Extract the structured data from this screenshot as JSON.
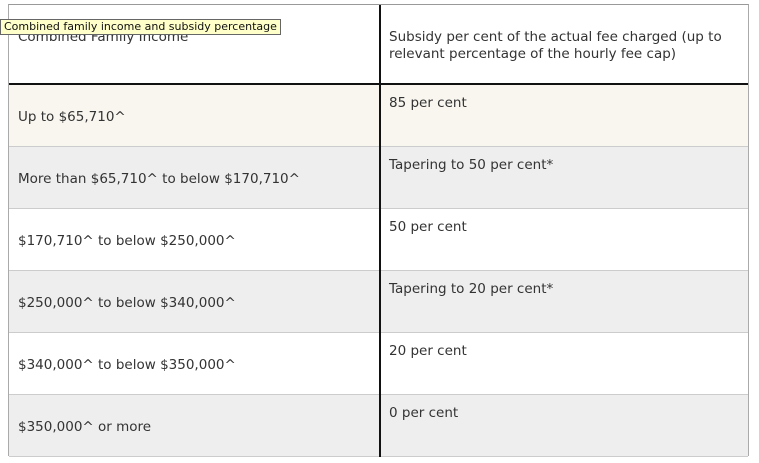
{
  "tooltip": "Combined family income and subsidy percentage",
  "table": {
    "header": [
      "Combined Family Income",
      "Subsidy per cent of the actual fee charged (up to relevant percentage of the hourly fee cap)"
    ],
    "rows": [
      [
        "Up to $65,710^",
        "85 per cent"
      ],
      [
        "More than $65,710^ to below $170,710^",
        "Tapering to 50 per cent*"
      ],
      [
        "$170,710^ to below $250,000^",
        "50 per cent"
      ],
      [
        "$250,000^ to below $340,000^",
        "Tapering to 20 per cent*"
      ],
      [
        "$340,000^ to below $350,000^",
        "20 per cent"
      ],
      [
        "$350,000^ or more",
        "0 per cent"
      ]
    ]
  }
}
